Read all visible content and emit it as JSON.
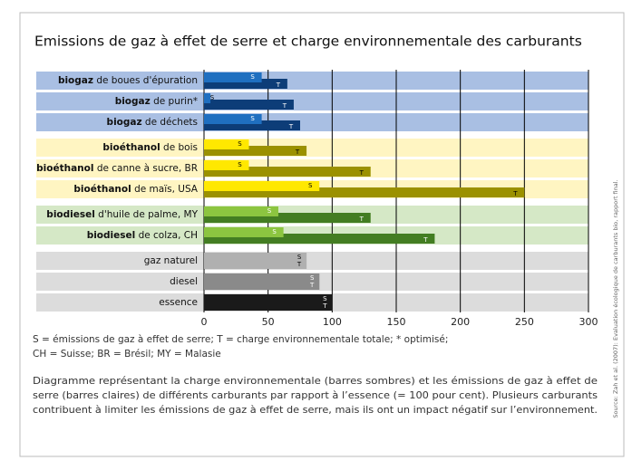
{
  "chart_data": {
    "type": "bar",
    "orientation": "horizontal",
    "title": "Emissions de gaz à effet de serre et charge environnementale des carburants",
    "categories": [
      "biogaz de boues d'épuration",
      "biogaz de purin*",
      "biogaz de déchets",
      "bioéthanol de bois",
      "bioéthanol de canne à sucre, BR",
      "bioéthanol de maïs, USA",
      "biodiesel d'huile de palme, MY",
      "biodiesel de colza, CH",
      "gaz naturel",
      "diesel",
      "essence"
    ],
    "bold_first_word": [
      true,
      true,
      true,
      true,
      true,
      true,
      true,
      true,
      false,
      false,
      false
    ],
    "band_colors": [
      "#a9bfe3",
      "#a9bfe3",
      "#a9bfe3",
      "#fff5c2",
      "#fff5c2",
      "#fff5c2",
      "#d5e8c6",
      "#d5e8c6",
      "#dcdcdc",
      "#dcdcdc",
      "#dcdcdc"
    ],
    "series": [
      {
        "name": "S",
        "values": [
          45,
          5,
          45,
          35,
          35,
          90,
          58,
          62,
          80,
          90,
          100
        ],
        "colors": [
          "#1f6fc0",
          "#1f6fc0",
          "#1f6fc0",
          "#ffe800",
          "#ffe800",
          "#ffe800",
          "#8cc540",
          "#8cc540",
          "#b0b0b0",
          "#8a8a8a",
          "#1a1a1a"
        ],
        "label_colors": [
          "#fff",
          "#000",
          "#fff",
          "#000",
          "#000",
          "#000",
          "#fff",
          "#fff",
          "#000",
          "#fff",
          "#fff"
        ]
      },
      {
        "name": "T",
        "values": [
          65,
          70,
          75,
          80,
          130,
          250,
          130,
          180,
          80,
          90,
          100
        ],
        "colors": [
          "#0d3d78",
          "#0d3d78",
          "#0d3d78",
          "#9b9100",
          "#9b9100",
          "#9b9100",
          "#437d22",
          "#437d22",
          "#b0b0b0",
          "#8a8a8a",
          "#1a1a1a"
        ],
        "label_colors": [
          "#fff",
          "#fff",
          "#fff",
          "#000",
          "#000",
          "#000",
          "#fff",
          "#fff",
          "#000",
          "#fff",
          "#fff"
        ]
      }
    ],
    "xlim": [
      0,
      300
    ],
    "xticks": [
      0,
      50,
      100,
      150,
      200,
      250,
      300
    ],
    "grid": true,
    "legend_note": [
      "S = émissions de gaz à effet de serre; T = charge environnementale totale; * optimisé;",
      "CH = Suisse; BR = Brésil; MY = Malasie"
    ],
    "description": [
      "Diagramme représentant la charge environnementale (barres sombres) et les émissions de gaz à effet de",
      "serre (barres claires) de différents carburants par rapport à l’essence (= 100 pour cent). Plusieurs carburants",
      "contribuent à limiter les émissions de gaz à effet de serre, mais ils ont un impact négatif sur l’environnement."
    ],
    "source": "Source: Zah et al. (2007): Evaluation écologique de carburants bio, rapport final."
  }
}
